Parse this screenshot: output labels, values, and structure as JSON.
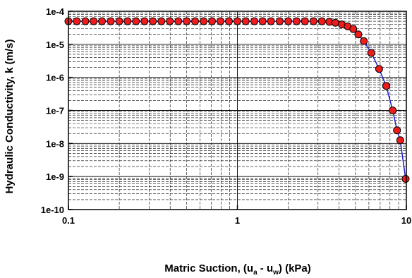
{
  "chart_data": {
    "type": "scatter",
    "title": "",
    "xlabel": "Matric Suction, (u_a - u_w) (kPa)",
    "xlabel_parts": {
      "prefix": "Matric Suction, (u",
      "sub1": "a",
      "mid": " - u",
      "sub2": "w",
      "suffix": ") (kPa)"
    },
    "ylabel": "Hydraulic Conductivity, k (m/s)",
    "xscale": "log",
    "yscale": "log",
    "xlim": [
      0.1,
      10
    ],
    "ylim": [
      1e-10,
      0.0001
    ],
    "grid": true,
    "x_tick_labels": [
      "0.1",
      "1",
      "10"
    ],
    "y_tick_labels": [
      "1e-10",
      "1e-9",
      "1e-8",
      "1e-7",
      "1e-6",
      "1e-5",
      "1e-4"
    ],
    "line_color": "#1f1fcc",
    "marker_color": "#ee1c1c",
    "marker_edge": "#000000",
    "series": [
      {
        "x": [
          0.1,
          0.112,
          0.126,
          0.141,
          0.158,
          0.178,
          0.2,
          0.224,
          0.251,
          0.282,
          0.316,
          0.355,
          0.398,
          0.447,
          0.501,
          0.562,
          0.631,
          0.708,
          0.794,
          0.891,
          1.0,
          1.12,
          1.26,
          1.41,
          1.58,
          1.78,
          2.0,
          2.24,
          2.51,
          2.82,
          3.16,
          3.5,
          3.8,
          4.15,
          4.5,
          4.85,
          5.2,
          5.6,
          6.2,
          6.9,
          7.6,
          8.3,
          8.8,
          9.2,
          9.9
        ],
        "y": [
          5e-05,
          5e-05,
          5e-05,
          5e-05,
          5e-05,
          5e-05,
          5e-05,
          5e-05,
          5e-05,
          5e-05,
          5e-05,
          5e-05,
          5e-05,
          5e-05,
          5e-05,
          5e-05,
          5e-05,
          5e-05,
          5e-05,
          5e-05,
          5e-05,
          5e-05,
          5e-05,
          5e-05,
          5e-05,
          5e-05,
          5e-05,
          5e-05,
          5e-05,
          5e-05,
          5e-05,
          4.8e-05,
          4.5e-05,
          4e-05,
          3.5e-05,
          2.9e-05,
          2e-05,
          1.25e-05,
          5.5e-06,
          1.8e-06,
          5.5e-07,
          1e-07,
          2.5e-08,
          1.25e-08,
          8.5e-10
        ]
      }
    ]
  }
}
